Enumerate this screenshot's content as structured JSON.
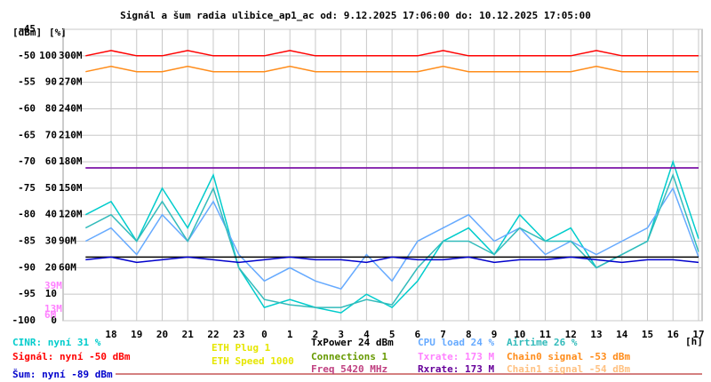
{
  "chart_data": {
    "type": "line",
    "title": "Signál a šum radia ulibice_ap1_ac od: 9.12.2025 17:06:00 do: 10.12.2025 17:05:00",
    "y_label": "[dBm]",
    "y2_label": "[%]",
    "x_label": "[h]",
    "grid": true,
    "xlim": [
      16.12,
      41.14
    ],
    "xticks": [
      18,
      19,
      20,
      21,
      22,
      23,
      {
        "value": 24,
        "label": "0"
      },
      {
        "value": 25,
        "label": "1"
      },
      {
        "value": 26,
        "label": "2"
      },
      {
        "value": 27,
        "label": "3"
      },
      {
        "value": 28,
        "label": "4"
      },
      {
        "value": 29,
        "label": "5"
      },
      {
        "value": 30,
        "label": "6"
      },
      {
        "value": 31,
        "label": "7"
      },
      {
        "value": 32,
        "label": "8"
      },
      {
        "value": 33,
        "label": "9"
      },
      {
        "value": 34,
        "label": "10"
      },
      {
        "value": 35,
        "label": "11"
      },
      {
        "value": 36,
        "label": "12"
      },
      {
        "value": 37,
        "label": "13"
      },
      {
        "value": 38,
        "label": "14"
      },
      {
        "value": 39,
        "label": "15"
      },
      {
        "value": 40,
        "label": "16"
      },
      {
        "value": 41,
        "label": "17"
      }
    ],
    "ylim": [
      -100,
      -45
    ],
    "yticks": [
      -100,
      -95,
      -90,
      -85,
      -80,
      -75,
      -70,
      -65,
      -60,
      -55,
      -50,
      -45
    ],
    "y2lim": [
      0,
      110
    ],
    "y2ticks": [
      0,
      10,
      20,
      30,
      40,
      50,
      60,
      70,
      80,
      90,
      100
    ],
    "y3lim": [
      0,
      330
    ],
    "y3ticks": [
      {
        "value": 60,
        "label": "60M"
      },
      {
        "value": 90,
        "label": "90M"
      },
      {
        "value": 120,
        "label": "120M"
      },
      {
        "value": 150,
        "label": "150M"
      },
      {
        "value": 180,
        "label": "180M"
      },
      {
        "value": 210,
        "label": "210M"
      },
      {
        "value": 240,
        "label": "240M"
      },
      {
        "value": 270,
        "label": "270M"
      },
      {
        "value": 300,
        "label": "300M"
      }
    ],
    "annotations": [
      {
        "value": 39,
        "label": "39M"
      },
      {
        "value": 13,
        "label": "13M"
      },
      {
        "value": 6,
        "label": "6M"
      }
    ],
    "x": [
      17,
      18,
      19,
      20,
      21,
      22,
      23,
      24,
      25,
      26,
      27,
      28,
      29,
      30,
      31,
      32,
      33,
      34,
      35,
      36,
      37,
      38,
      39,
      40,
      41
    ],
    "series": [
      {
        "name": "Signál: nyní -50 dBm",
        "color": "#ff0000",
        "values": [
          -50,
          -49,
          -50,
          -50,
          -49,
          -50,
          -50,
          -50,
          -49,
          -50,
          -50,
          -50,
          -50,
          -50,
          -49,
          -50,
          -50,
          -50,
          -50,
          -50,
          -49,
          -50,
          -50,
          -50,
          -50
        ]
      },
      {
        "name": "Chain0 signal -53 dBm",
        "color": "#ff8c1a",
        "values": [
          -53,
          -52,
          -53,
          -53,
          -52,
          -53,
          -53,
          -53,
          -52,
          -53,
          -53,
          -53,
          -53,
          -53,
          -52,
          -53,
          -53,
          -53,
          -53,
          -53,
          -52,
          -53,
          -53,
          -53,
          -53
        ]
      },
      {
        "name": "Šum: nyní -89 dBm",
        "color": "#0000cc",
        "values": [
          -88.5,
          -88,
          -89,
          -88.5,
          -88,
          -88.5,
          -89,
          -88.5,
          -88,
          -88.5,
          -88.5,
          -89,
          -88,
          -88.5,
          -88.5,
          -88,
          -89,
          -88.5,
          -88.5,
          -88,
          -88.5,
          -89,
          -88.5,
          -88.5,
          -89
        ]
      },
      {
        "name": "CINR: nyní 31 %",
        "color": "#00cccc",
        "axis": "y2",
        "values": [
          40,
          45,
          30,
          50,
          35,
          55,
          20,
          5,
          8,
          5,
          3,
          10,
          5,
          15,
          30,
          35,
          25,
          40,
          30,
          35,
          20,
          25,
          30,
          60,
          31
        ]
      },
      {
        "name": "CPU load 24 %",
        "color": "#66aaff",
        "axis": "y2",
        "values": [
          30,
          35,
          25,
          40,
          30,
          45,
          25,
          15,
          20,
          15,
          12,
          25,
          15,
          30,
          35,
          40,
          30,
          35,
          25,
          30,
          25,
          30,
          35,
          50,
          24
        ]
      },
      {
        "name": "Airtime 26 %",
        "color": "#33bbbb",
        "axis": "y2",
        "values": [
          35,
          40,
          30,
          45,
          30,
          50,
          20,
          8,
          6,
          5,
          5,
          8,
          6,
          20,
          30,
          30,
          25,
          35,
          30,
          30,
          20,
          25,
          30,
          55,
          26
        ]
      },
      {
        "name": "TxPower 24 dBm",
        "color": "#000000",
        "axis": "y2",
        "values": [
          24,
          24,
          24,
          24,
          24,
          24,
          24,
          24,
          24,
          24,
          24,
          24,
          24,
          24,
          24,
          24,
          24,
          24,
          24,
          24,
          24,
          24,
          24,
          24,
          24
        ]
      },
      {
        "name": "Txrate: 173 M",
        "color": "#ff80ff",
        "axis": "y3",
        "values": [
          173,
          173,
          173,
          173,
          173,
          173,
          173,
          173,
          173,
          173,
          173,
          173,
          173,
          173,
          173,
          173,
          173,
          173,
          173,
          173,
          173,
          173,
          173,
          173,
          173
        ]
      },
      {
        "name": "Rxrate: 173 M",
        "color": "#660099",
        "axis": "y3",
        "values": [
          173,
          173,
          173,
          173,
          173,
          173,
          173,
          173,
          173,
          173,
          173,
          173,
          173,
          173,
          173,
          173,
          173,
          173,
          173,
          173,
          173,
          173,
          173,
          173,
          173
        ]
      }
    ],
    "legend_extra": [
      {
        "text": "ETH Plug 1",
        "color": "#e6e600"
      },
      {
        "text": "ETH Speed 1000",
        "color": "#e6e600"
      },
      {
        "text": "Connections 1",
        "color": "#669900"
      },
      {
        "text": "Freq 5420 MHz",
        "color": "#c04080"
      },
      {
        "text": "Chain1 signal -54 dBm",
        "color": "#ffc080"
      }
    ]
  }
}
